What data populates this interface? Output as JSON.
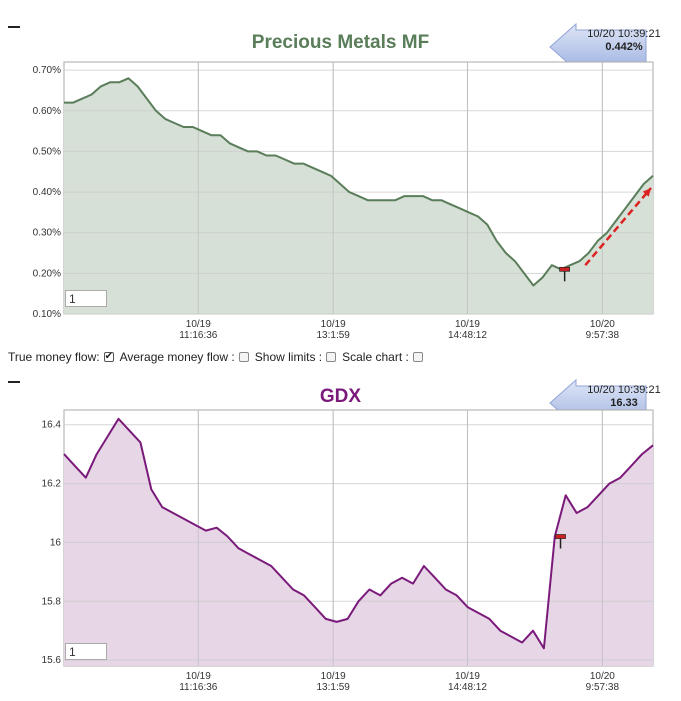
{
  "controls": {
    "true_money_flow": {
      "label": "True money flow:",
      "checked": true
    },
    "average_money_flow": {
      "label": "Average money flow :",
      "checked": false
    },
    "show_limits": {
      "label": "Show limits :",
      "checked": false
    },
    "scale_chart": {
      "label": "Scale chart :",
      "checked": false
    }
  },
  "chart_data": [
    {
      "type": "area",
      "title": "Precious Metals MF",
      "color": "#5a7d5a",
      "fill": "#d6e0d6",
      "title_color": "#5a7d5a",
      "tooltip": {
        "time": "10/20 10:39:21",
        "value": "0.442%"
      },
      "zoom_value": "1",
      "y_ticks": [
        "0.70%",
        "0.60%",
        "0.50%",
        "0.40%",
        "0.30%",
        "0.20%",
        "0.10%"
      ],
      "ylim": [
        0.1,
        0.72
      ],
      "x_ticks": [
        {
          "date": "10/19",
          "time": "11:16:36"
        },
        {
          "date": "10/19",
          "time": "13:1:59"
        },
        {
          "date": "10/19",
          "time": "14:48:12"
        },
        {
          "date": "10/20",
          "time": "9:57:38"
        }
      ],
      "x_tick_index": [
        0.228,
        0.457,
        0.685,
        0.914
      ],
      "values": [
        0.62,
        0.62,
        0.63,
        0.64,
        0.66,
        0.67,
        0.67,
        0.68,
        0.66,
        0.63,
        0.6,
        0.58,
        0.57,
        0.56,
        0.56,
        0.55,
        0.54,
        0.54,
        0.52,
        0.51,
        0.5,
        0.5,
        0.49,
        0.49,
        0.48,
        0.47,
        0.47,
        0.46,
        0.45,
        0.44,
        0.42,
        0.4,
        0.39,
        0.38,
        0.38,
        0.38,
        0.38,
        0.39,
        0.39,
        0.39,
        0.38,
        0.38,
        0.37,
        0.36,
        0.35,
        0.34,
        0.32,
        0.28,
        0.25,
        0.23,
        0.2,
        0.17,
        0.19,
        0.22,
        0.21,
        0.22,
        0.23,
        0.25,
        0.28,
        0.3,
        0.33,
        0.36,
        0.39,
        0.42,
        0.44
      ],
      "annotations": [
        {
          "type": "marker",
          "index": 0.85,
          "value": 0.21,
          "color": "#cc2222"
        },
        {
          "type": "arrow",
          "from": [
            0.885,
            0.22
          ],
          "to": [
            1.0,
            0.41
          ],
          "color": "#dd2222",
          "style": "dashed"
        }
      ]
    },
    {
      "type": "area",
      "title": "GDX",
      "color": "#7a1a7a",
      "fill": "#e6d6e6",
      "title_color": "#7a1a7a",
      "tooltip": {
        "time": "10/20 10:39:21",
        "value": "16.33"
      },
      "zoom_value": "1",
      "y_ticks": [
        "16.4",
        "16.2",
        "16",
        "15.8",
        "15.6"
      ],
      "y_tick_values": [
        16.4,
        16.2,
        16.0,
        15.8,
        15.6
      ],
      "ylim": [
        15.58,
        16.45
      ],
      "x_ticks": [
        {
          "date": "10/19",
          "time": "11:16:36"
        },
        {
          "date": "10/19",
          "time": "13:1:59"
        },
        {
          "date": "10/19",
          "time": "14:48:12"
        },
        {
          "date": "10/20",
          "time": "9:57:38"
        }
      ],
      "x_tick_index": [
        0.228,
        0.457,
        0.685,
        0.914
      ],
      "values": [
        16.3,
        16.26,
        16.22,
        16.3,
        16.36,
        16.42,
        16.38,
        16.34,
        16.18,
        16.12,
        16.1,
        16.08,
        16.06,
        16.04,
        16.05,
        16.02,
        15.98,
        15.96,
        15.94,
        15.92,
        15.88,
        15.84,
        15.82,
        15.78,
        15.74,
        15.73,
        15.74,
        15.8,
        15.84,
        15.82,
        15.86,
        15.88,
        15.86,
        15.92,
        15.88,
        15.84,
        15.82,
        15.78,
        15.76,
        15.74,
        15.7,
        15.68,
        15.66,
        15.7,
        15.64,
        16.02,
        16.16,
        16.1,
        16.12,
        16.16,
        16.2,
        16.22,
        16.26,
        16.3,
        16.33
      ],
      "annotations": [
        {
          "type": "marker",
          "index": 0.843,
          "value": 16.02,
          "color": "#cc2222"
        }
      ]
    }
  ]
}
